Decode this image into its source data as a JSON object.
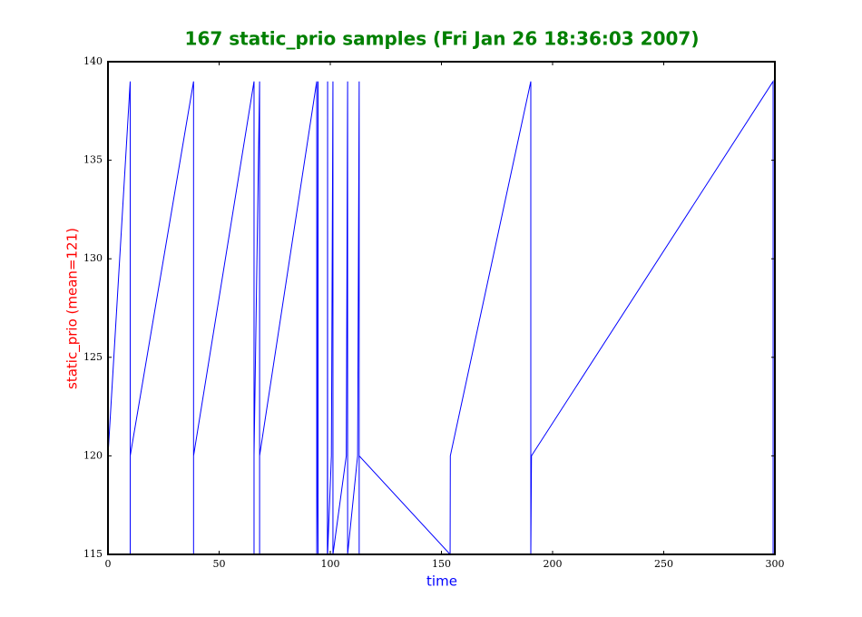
{
  "chart_data": {
    "type": "line",
    "title": "167 static_prio samples (Fri Jan 26 18:36:03 2007)",
    "x_label": "time",
    "y_label": "static_prio (mean=121)",
    "color": "#0000ff",
    "x": [
      0,
      10,
      10,
      10,
      38.5,
      38.5,
      38.5,
      65.7,
      65.7,
      65.7,
      68.2,
      68.2,
      68.2,
      93.9,
      93.9,
      94.2,
      94.5,
      94.5,
      98.7,
      98.8,
      98.8,
      100.5,
      101.2,
      101.2,
      107.2,
      107.8,
      107.8,
      112.3,
      113,
      113,
      113,
      153.9,
      154,
      190.2,
      190.2,
      190.5,
      299.2,
      299.2
    ],
    "values": [
      120,
      139,
      115,
      120,
      139,
      115,
      120,
      139,
      115,
      120,
      139,
      115,
      120,
      139,
      115,
      120,
      139,
      115,
      115,
      139,
      115,
      120,
      139,
      115,
      120,
      139,
      115,
      120,
      139,
      115,
      120,
      115,
      120,
      139,
      115,
      120,
      139,
      115
    ],
    "xlim": [
      0,
      300
    ],
    "xticks": [
      0,
      50,
      100,
      150,
      200,
      250,
      300
    ],
    "ylim": [
      115,
      140
    ],
    "yticks": [
      115,
      120,
      125,
      130,
      135,
      140
    ],
    "grid": false
  }
}
